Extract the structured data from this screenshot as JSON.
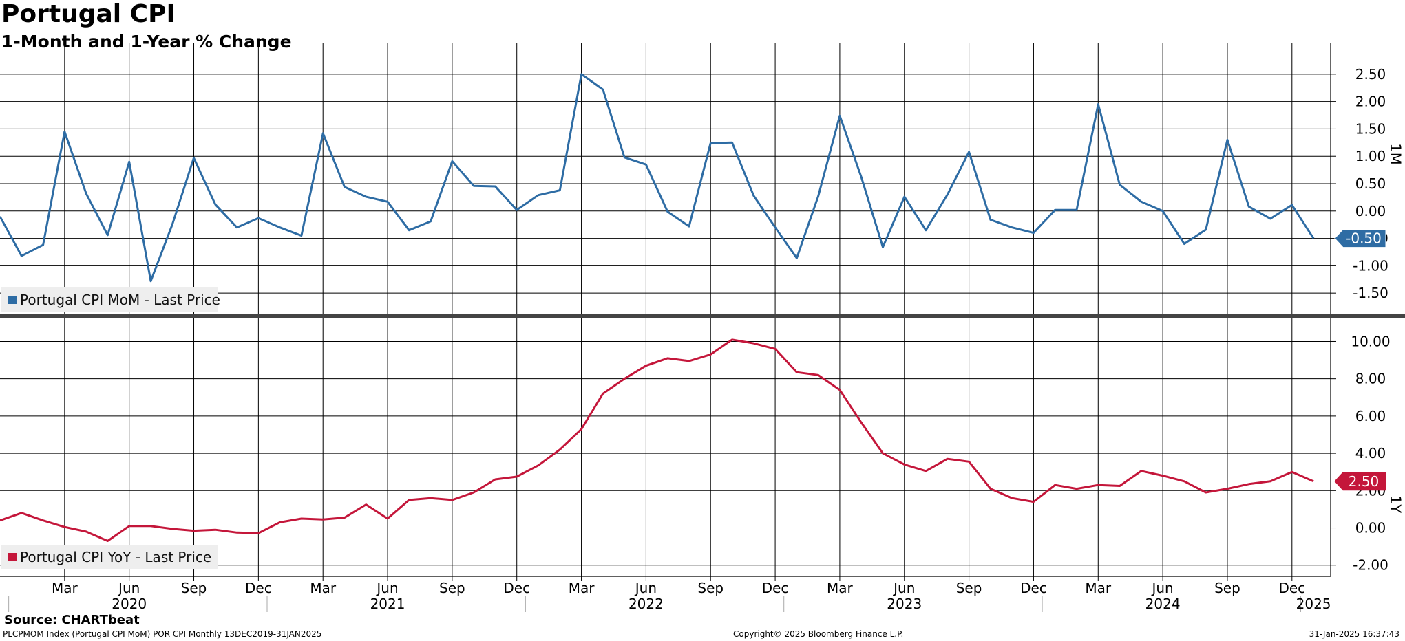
{
  "header": {
    "title": "Portugal CPI",
    "subtitle": "1-Month and 1-Year % Change"
  },
  "footer": {
    "source": "Source: CHARTbeat",
    "index_info": "PLCPMOM Index (Portugal CPI MoM) POR CPI  Monthly 13DEC2019-31JAN2025",
    "copyright": "Copyright© 2025 Bloomberg Finance L.P.",
    "timestamp": "31-Jan-2025 16:37:43"
  },
  "colors": {
    "mom": "#2e6ca4",
    "yoy": "#c4163a",
    "grid": "#000000",
    "divider": "#444444",
    "legend_bg": "#eeeeee"
  },
  "chart_data": [
    {
      "type": "line",
      "panel": "top",
      "axis_title": "1M",
      "legend": "Portugal CPI MoM - Last Price",
      "last_value_label": "-0.50",
      "ylim": [
        -1.9,
        2.85
      ],
      "yticks": [
        "2.50",
        "2.00",
        "1.50",
        "1.00",
        "0.50",
        "0.00",
        "-0.50",
        "-1.00",
        "-1.50"
      ],
      "grid": true,
      "legend_position": "bottom-left",
      "series": [
        {
          "name": "Portugal CPI MoM - Last Price",
          "x": [
            "2019-12",
            "2020-01",
            "2020-02",
            "2020-03",
            "2020-04",
            "2020-05",
            "2020-06",
            "2020-07",
            "2020-08",
            "2020-09",
            "2020-10",
            "2020-11",
            "2020-12",
            "2021-01",
            "2021-02",
            "2021-03",
            "2021-04",
            "2021-05",
            "2021-06",
            "2021-07",
            "2021-08",
            "2021-09",
            "2021-10",
            "2021-11",
            "2021-12",
            "2022-01",
            "2022-02",
            "2022-03",
            "2022-04",
            "2022-05",
            "2022-06",
            "2022-07",
            "2022-08",
            "2022-09",
            "2022-10",
            "2022-11",
            "2022-12",
            "2023-01",
            "2023-02",
            "2023-03",
            "2023-04",
            "2023-05",
            "2023-06",
            "2023-07",
            "2023-08",
            "2023-09",
            "2023-10",
            "2023-11",
            "2023-12",
            "2024-01",
            "2024-02",
            "2024-03",
            "2024-04",
            "2024-05",
            "2024-06",
            "2024-07",
            "2024-08",
            "2024-09",
            "2024-10",
            "2024-11",
            "2024-12",
            "2025-01"
          ],
          "values": [
            -0.1,
            -0.82,
            -0.62,
            1.45,
            0.32,
            -0.44,
            0.9,
            -1.28,
            -0.25,
            0.97,
            0.12,
            -0.3,
            -0.13,
            -0.3,
            -0.45,
            1.42,
            0.44,
            0.26,
            0.17,
            -0.35,
            -0.19,
            0.91,
            0.46,
            0.45,
            0.02,
            0.29,
            0.38,
            2.5,
            2.22,
            0.98,
            0.85,
            -0.01,
            -0.28,
            1.24,
            1.25,
            0.28,
            -0.3,
            -0.86,
            0.27,
            1.74,
            0.62,
            -0.66,
            0.26,
            -0.35,
            0.3,
            1.08,
            -0.16,
            -0.3,
            -0.4,
            0.02,
            0.02,
            1.95,
            0.48,
            0.17,
            0.0,
            -0.6,
            -0.34,
            1.3,
            0.08,
            -0.14,
            0.11,
            -0.5
          ]
        }
      ]
    },
    {
      "type": "line",
      "panel": "bottom",
      "axis_title": "1Y",
      "legend": "Portugal CPI YoY - Last Price",
      "last_value_label": "2.50",
      "ylim": [
        -2.6,
        11.05
      ],
      "yticks": [
        "10.00",
        "8.00",
        "6.00",
        "4.00",
        "2.00",
        "0.00",
        "-2.00"
      ],
      "grid": true,
      "legend_position": "bottom-left",
      "series": [
        {
          "name": "Portugal CPI YoY - Last Price",
          "x": [
            "2019-12",
            "2020-01",
            "2020-02",
            "2020-03",
            "2020-04",
            "2020-05",
            "2020-06",
            "2020-07",
            "2020-08",
            "2020-09",
            "2020-10",
            "2020-11",
            "2020-12",
            "2021-01",
            "2021-02",
            "2021-03",
            "2021-04",
            "2021-05",
            "2021-06",
            "2021-07",
            "2021-08",
            "2021-09",
            "2021-10",
            "2021-11",
            "2021-12",
            "2022-01",
            "2022-02",
            "2022-03",
            "2022-04",
            "2022-05",
            "2022-06",
            "2022-07",
            "2022-08",
            "2022-09",
            "2022-10",
            "2022-11",
            "2022-12",
            "2023-01",
            "2023-02",
            "2023-03",
            "2023-04",
            "2023-05",
            "2023-06",
            "2023-07",
            "2023-08",
            "2023-09",
            "2023-10",
            "2023-11",
            "2023-12",
            "2024-01",
            "2024-02",
            "2024-03",
            "2024-04",
            "2024-05",
            "2024-06",
            "2024-07",
            "2024-08",
            "2024-09",
            "2024-10",
            "2024-11",
            "2024-12",
            "2025-01"
          ],
          "values": [
            0.4,
            0.8,
            0.4,
            0.05,
            -0.2,
            -0.7,
            0.1,
            0.1,
            -0.05,
            -0.15,
            -0.1,
            -0.25,
            -0.28,
            0.3,
            0.5,
            0.45,
            0.55,
            1.25,
            0.5,
            1.5,
            1.6,
            1.5,
            1.9,
            2.6,
            2.75,
            3.35,
            4.2,
            5.3,
            7.2,
            8.0,
            8.7,
            9.1,
            8.95,
            9.3,
            10.1,
            9.9,
            9.6,
            8.35,
            8.2,
            7.4,
            5.65,
            4.0,
            3.4,
            3.05,
            3.7,
            3.55,
            2.1,
            1.6,
            1.4,
            2.3,
            2.1,
            2.3,
            2.25,
            3.05,
            2.8,
            2.5,
            1.9,
            2.1,
            2.35,
            2.5,
            3.0,
            2.5
          ]
        }
      ]
    }
  ],
  "x_axis": {
    "months": [
      {
        "label": "Mar",
        "date": "2020-03"
      },
      {
        "label": "Jun",
        "date": "2020-06"
      },
      {
        "label": "Sep",
        "date": "2020-09"
      },
      {
        "label": "Dec",
        "date": "2020-12"
      },
      {
        "label": "Mar",
        "date": "2021-03"
      },
      {
        "label": "Jun",
        "date": "2021-06"
      },
      {
        "label": "Sep",
        "date": "2021-09"
      },
      {
        "label": "Dec",
        "date": "2021-12"
      },
      {
        "label": "Mar",
        "date": "2022-03"
      },
      {
        "label": "Jun",
        "date": "2022-06"
      },
      {
        "label": "Sep",
        "date": "2022-09"
      },
      {
        "label": "Dec",
        "date": "2022-12"
      },
      {
        "label": "Mar",
        "date": "2023-03"
      },
      {
        "label": "Jun",
        "date": "2023-06"
      },
      {
        "label": "Sep",
        "date": "2023-09"
      },
      {
        "label": "Dec",
        "date": "2023-12"
      },
      {
        "label": "Mar",
        "date": "2024-03"
      },
      {
        "label": "Jun",
        "date": "2024-06"
      },
      {
        "label": "Sep",
        "date": "2024-09"
      },
      {
        "label": "Dec",
        "date": "2024-12"
      }
    ],
    "years": [
      {
        "label": "2020",
        "date": "2020-06"
      },
      {
        "label": "2021",
        "date": "2021-06"
      },
      {
        "label": "2022",
        "date": "2022-06"
      },
      {
        "label": "2023",
        "date": "2023-06"
      },
      {
        "label": "2024",
        "date": "2024-06"
      },
      {
        "label": "2025",
        "date": "2025-01"
      }
    ]
  }
}
